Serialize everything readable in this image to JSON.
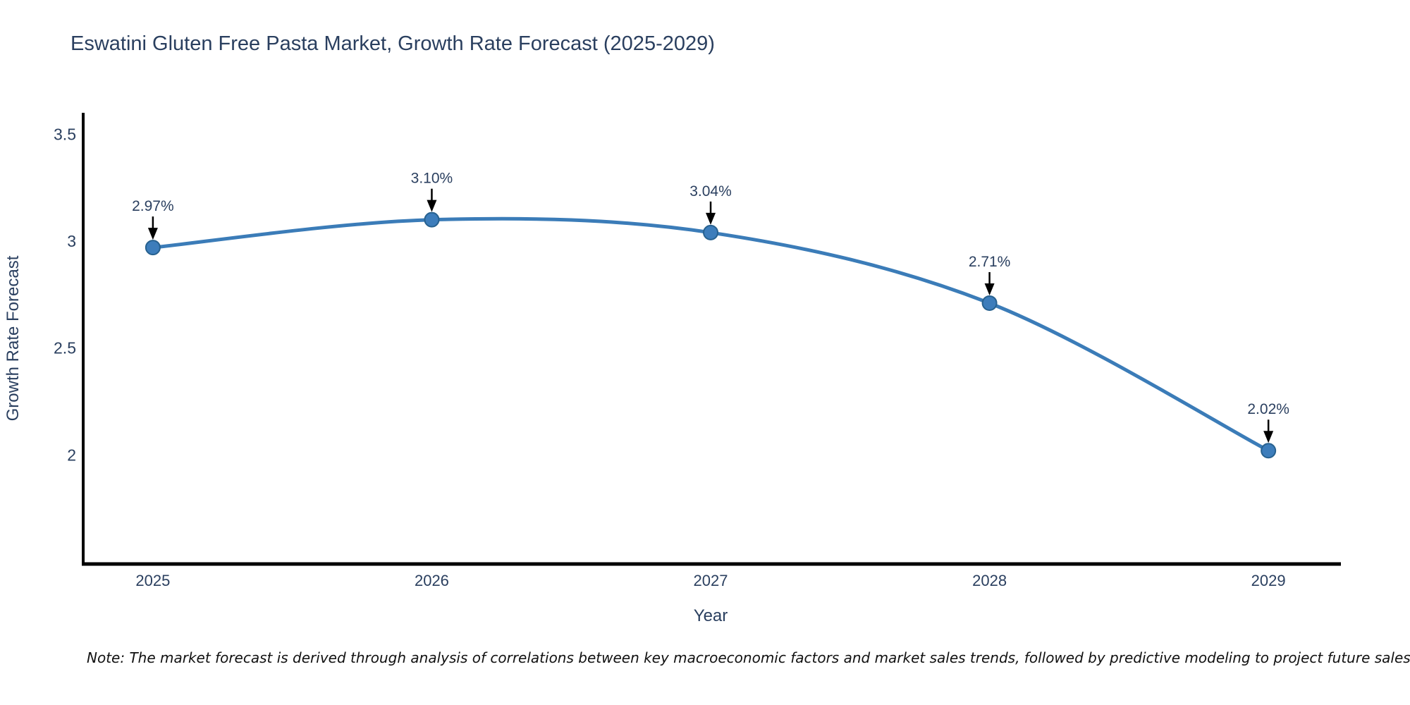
{
  "header": {
    "title": "Eswatini Gluten Free Pasta Market, Growth Rate Forecast (2025-2029)"
  },
  "footnote": "Note: The market forecast is derived through analysis of correlations between key macroeconomic factors and market sales trends, followed by predictive modeling to project future sales",
  "chart_data": {
    "type": "line",
    "title": "Eswatini Gluten Free Pasta Market, Growth Rate Forecast (2025-2029)",
    "x": [
      2025,
      2026,
      2027,
      2028,
      2029
    ],
    "series": [
      {
        "name": "Growth Rate Forecast",
        "values": [
          2.97,
          3.1,
          3.04,
          2.71,
          2.02
        ]
      }
    ],
    "point_labels": [
      "2.97%",
      "3.10%",
      "3.04%",
      "2.71%",
      "2.02%"
    ],
    "xlabel": "Year",
    "ylabel": "Growth Rate Forecast",
    "xtick_labels": [
      "2025",
      "2026",
      "2027",
      "2028",
      "2029"
    ],
    "ytick_labels": [
      "2",
      "2.5",
      "3",
      "3.5"
    ],
    "ytick_values": [
      2,
      2.5,
      3,
      3.5
    ],
    "xlim": [
      2024.75,
      2029.26
    ],
    "ylim": [
      1.49,
      3.6
    ],
    "grid": false,
    "legend_position": "none",
    "line_shape": "spline",
    "colors": {
      "line": "#3b7cb8",
      "marker_fill": "#3d7dbb",
      "marker_edge": "#27618f",
      "axis": "#000000",
      "chart_text": "#2a3f5f",
      "annotation_text": "#2a3f5f",
      "annotation_arrow": "#000000",
      "note_text": "#111111"
    }
  }
}
